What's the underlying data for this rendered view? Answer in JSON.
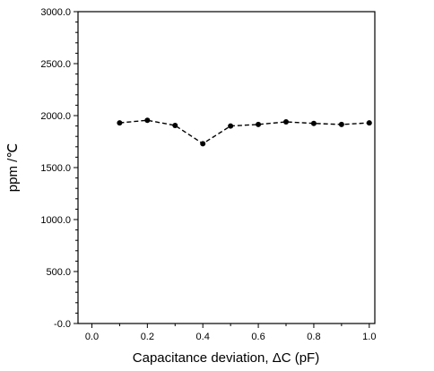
{
  "chart_data": {
    "type": "line",
    "title": "",
    "xlabel": "Capacitance deviation, ΔC (pF)",
    "ylabel": "ppm /℃",
    "xlim": [
      -0.05,
      1.02
    ],
    "ylim": [
      -0.0,
      3000.0
    ],
    "xticks": [
      0.0,
      0.2,
      0.4,
      0.6,
      0.8,
      1.0
    ],
    "xtick_labels": [
      "0.0",
      "0.2",
      "0.4",
      "0.6",
      "0.8",
      "1.0"
    ],
    "yticks": [
      0,
      500,
      1000,
      1500,
      2000,
      2500,
      3000
    ],
    "ytick_labels": [
      "-0.0",
      "500.0",
      "1000.0",
      "1500.0",
      "2000.0",
      "2500.0",
      "3000.0"
    ],
    "grid": false,
    "legend": "none",
    "series": [
      {
        "line_style": "dashed",
        "marker": "circle",
        "color": "#000000",
        "x": [
          0.1,
          0.2,
          0.3,
          0.4,
          0.5,
          0.6,
          0.7,
          0.8,
          0.9,
          1.0
        ],
        "y": [
          1930,
          1955,
          1905,
          1730,
          1900,
          1915,
          1940,
          1925,
          1915,
          1930
        ]
      }
    ]
  }
}
